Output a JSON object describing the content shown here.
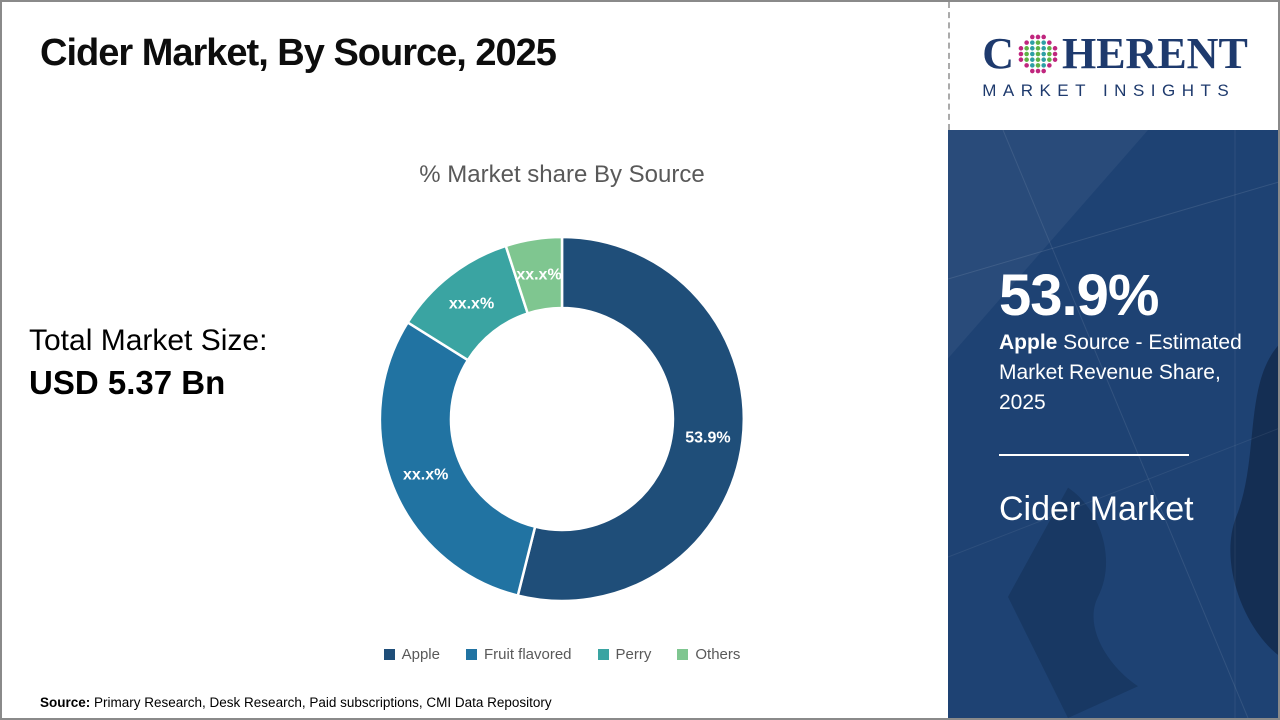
{
  "header": {
    "title": "Cider Market, By Source, 2025"
  },
  "logo": {
    "prefix": "C",
    "suffix": "HERENT",
    "subtitle": "MARKET INSIGHTS",
    "navy": "#1E3A6D",
    "globe_colors": {
      "outer": "#C0267E",
      "teal": "#2E9FA5",
      "green": "#5FB246"
    }
  },
  "chart": {
    "title": "% Market share By Source"
  },
  "chart_data": {
    "type": "pie",
    "subtype": "donut",
    "title": "% Market share By Source",
    "categories": [
      "Apple",
      "Fruit flavored",
      "Perry",
      "Others"
    ],
    "values": [
      53.9,
      30.0,
      11.1,
      5.0
    ],
    "value_labels": [
      "53.9%",
      "xx.x%",
      "xx.x%",
      "xx.x%"
    ],
    "colors": [
      "#1F4E79",
      "#2173A2",
      "#3AA4A2",
      "#7FC690"
    ],
    "legend_position": "bottom",
    "start_angle_deg": 0,
    "direction": "clockwise"
  },
  "market_size": {
    "label": "Total Market Size:",
    "value": "USD 5.37 Bn"
  },
  "panel": {
    "bg_color": "#1E4273",
    "stat": "53.9%",
    "desc_bold": "Apple",
    "desc_rest": " Source - Estimated Market Revenue Share, 2025",
    "market_name": "Cider Market"
  },
  "source": {
    "label": "Source:",
    "text": " Primary Research, Desk Research, Paid subscriptions, CMI Data Repository"
  }
}
